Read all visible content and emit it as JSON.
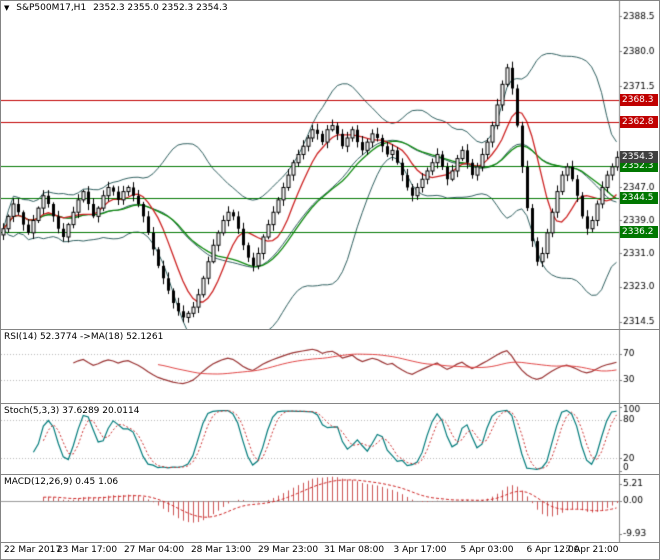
{
  "window": {
    "title": "S&P500M17,H1"
  },
  "colors": {
    "candle": "#000000",
    "candle_up_fill": "#ffffff",
    "bollinger": "#2f5f5f",
    "ma_fast": "#cc2222",
    "ma_slow": "#0e8a0e",
    "level_red": "#c00000",
    "level_green": "#007700",
    "rsi_line": "#993333",
    "rsi_ma": "#e04444",
    "stoch_main": "#007b7b",
    "stoch_signal": "#cc3333",
    "macd_hist": "#cc5555",
    "macd_signal": "#cc2222",
    "axis": "#848484",
    "grid_dotted": "#b8b8b8",
    "price_tag_bg": "#404040"
  },
  "main": {
    "marker": "▼",
    "symbol": "S&P500M17,H1",
    "ohlc": "2352.3 2355.0 2352.3 2354.3",
    "range": [
      2312.7,
      2392.2
    ],
    "ticks": [
      2388.5,
      2380.0,
      2371.5,
      2347.0,
      2339.0,
      2331.0,
      2323.0,
      2314.5
    ],
    "levels": [
      {
        "value": 2368.3,
        "color": "#c00000",
        "kind": "resistance"
      },
      {
        "value": 2362.8,
        "color": "#c00000",
        "kind": "resistance"
      },
      {
        "value": 2352.3,
        "color": "#007700",
        "kind": "support"
      },
      {
        "value": 2344.5,
        "color": "#007700",
        "kind": "support"
      },
      {
        "value": 2336.2,
        "color": "#007700",
        "kind": "support"
      }
    ],
    "current_price": 2354.3
  },
  "rsi": {
    "label": "RSI(14) 52.3774 ->MA(18) 52.1261",
    "ticks": [
      70,
      30
    ],
    "range": [
      0,
      100
    ]
  },
  "stoch": {
    "label": "Stoch(5,3,3) 37.6289 20.0114",
    "ticks": [
      100,
      80,
      20,
      0
    ],
    "range": [
      0,
      100
    ]
  },
  "macd": {
    "label": "MACD(12,26,9) 0.45 1.06",
    "ticks": [
      5.21,
      0,
      -9.93
    ],
    "range": [
      -11.5,
      7
    ]
  },
  "xaxis": {
    "labels": [
      "22 Mar 2017",
      "23 Mar 17:00",
      "27 Mar 04:00",
      "28 Mar 13:00",
      "29 Mar 23:00",
      "31 Mar 08:00",
      "3 Apr 17:00",
      "5 Apr 03:00",
      "6 Apr 12:00",
      "7 Apr 21:00"
    ]
  },
  "chart_data": {
    "type": "candlestick",
    "title": "S&P500M17,H1",
    "timeframe": "H1",
    "ohlc_display": {
      "open": 2352.3,
      "high": 2355.0,
      "low": 2352.3,
      "close": 2354.3
    },
    "ylim": [
      2314.5,
      2388.5
    ],
    "x_ticks": [
      "22 Mar 2017",
      "23 Mar 17:00",
      "27 Mar 04:00",
      "28 Mar 13:00",
      "29 Mar 23:00",
      "31 Mar 08:00",
      "3 Apr 17:00",
      "5 Apr 03:00",
      "6 Apr 12:00",
      "7 Apr 21:00"
    ],
    "closes": [
      2337.0,
      2340.0,
      2343.0,
      2341.0,
      2338.0,
      2336.0,
      2339.0,
      2342.0,
      2345.0,
      2343.0,
      2340.0,
      2337.0,
      2335.0,
      2338.0,
      2341.0,
      2344.0,
      2346.0,
      2343.0,
      2340.0,
      2342.0,
      2345.0,
      2347.0,
      2346.0,
      2344.0,
      2346.0,
      2347.0,
      2345.0,
      2343.0,
      2340.0,
      2336.0,
      2332.0,
      2328.0,
      2325.0,
      2322.0,
      2319.0,
      2317.0,
      2315.5,
      2316.5,
      2318.0,
      2321.0,
      2325.0,
      2329.0,
      2333.0,
      2336.0,
      2339.0,
      2341.0,
      2340.0,
      2337.0,
      2333.0,
      2330.0,
      2328.0,
      2331.0,
      2335.0,
      2338.0,
      2341.0,
      2344.0,
      2347.0,
      2350.0,
      2353.0,
      2355.0,
      2357.0,
      2359.0,
      2361.0,
      2360.0,
      2358.0,
      2361.0,
      2362.0,
      2360.0,
      2357.0,
      2359.0,
      2361.0,
      2358.0,
      2356.0,
      2358.0,
      2360.0,
      2359.0,
      2357.0,
      2355.0,
      2356.0,
      2353.0,
      2350.0,
      2347.0,
      2345.0,
      2347.0,
      2349.0,
      2351.0,
      2353.0,
      2355.0,
      2352.0,
      2349.0,
      2351.0,
      2354.0,
      2356.0,
      2353.0,
      2350.0,
      2352.0,
      2355.0,
      2358.0,
      2362.0,
      2367.0,
      2372.0,
      2376.0,
      2371.0,
      2362.0,
      2352.0,
      2342.0,
      2334.0,
      2329.0,
      2331.0,
      2336.0,
      2341.0,
      2346.0,
      2350.0,
      2352.0,
      2349.0,
      2345.0,
      2340.0,
      2337.0,
      2339.0,
      2343.0,
      2347.0,
      2350.0,
      2352.0,
      2354.3
    ],
    "overlays": {
      "bollinger_period": 20,
      "bollinger_dev": 2,
      "ma_fast_period": 8,
      "ma_slow_period": 21
    },
    "resistance_levels": [
      2368.3,
      2362.8
    ],
    "support_levels": [
      2352.3,
      2344.5,
      2336.2
    ],
    "indicators": [
      {
        "name": "RSI",
        "settings": "14",
        "value": 52.3774,
        "ma_settings": "18",
        "ma_value": 52.1261,
        "levels": [
          70,
          30
        ]
      },
      {
        "name": "Stochastic",
        "settings": "5,3,3",
        "main": 37.6289,
        "signal": 20.0114,
        "levels": [
          80,
          20
        ]
      },
      {
        "name": "MACD",
        "settings": "12,26,9",
        "main": 0.45,
        "signal": 1.06,
        "scale": [
          5.21,
          0.0,
          -9.93
        ]
      }
    ]
  }
}
